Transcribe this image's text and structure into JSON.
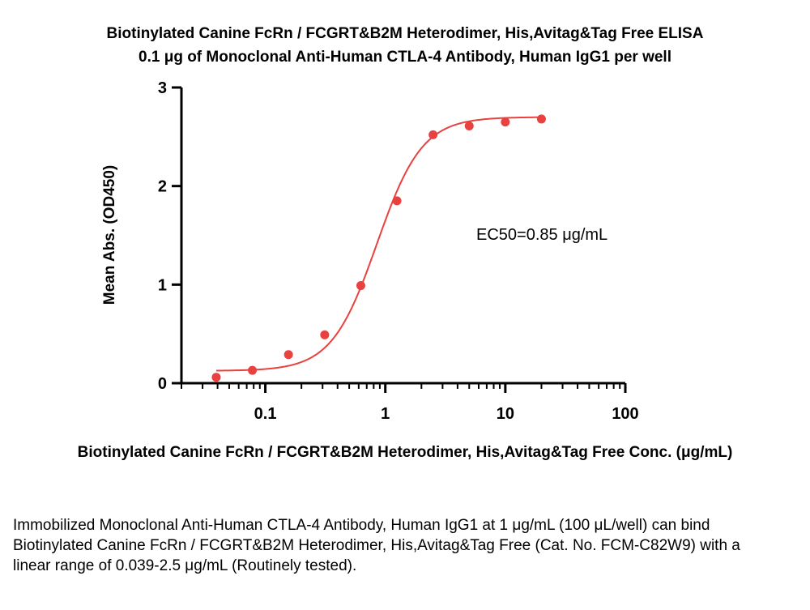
{
  "title": "Biotinylated Canine FcRn / FCGRT&B2M Heterodimer, His,Avitag&Tag Free ELISA",
  "subtitle": "0.1 μg of Monoclonal Anti-Human CTLA-4 Antibody, Human IgG1 per well",
  "caption": "Immobilized Monoclonal Anti-Human CTLA-4 Antibody, Human IgG1 at 1 μg/mL (100 μL/well) can bind Biotinylated Canine FcRn / FCGRT&B2M Heterodimer, His,Avitag&Tag Free (Cat. No. FCM-C82W9) with a linear range of 0.039-2.5 μg/mL (Routinely tested).",
  "colors": {
    "series": "#e8413f",
    "axis": "#000000"
  },
  "chart_data": {
    "type": "scatter",
    "title": "Biotinylated Canine FcRn / FCGRT&B2M Heterodimer, His,Avitag&Tag Free ELISA",
    "subtitle": "0.1 μg of Monoclonal Anti-Human CTLA-4 Antibody, Human IgG1 per well",
    "xlabel": "Biotinylated Canine FcRn / FCGRT&B2M Heterodimer, His,Avitag&Tag Free Conc. (μg/mL)",
    "ylabel": "Mean Abs. (OD450)",
    "xscale": "log",
    "xlim": [
      0.02,
      100
    ],
    "ylim": [
      0,
      3
    ],
    "xticks": [
      0.1,
      1,
      10,
      100
    ],
    "xtick_labels": [
      "0.1",
      "1",
      "10",
      "100"
    ],
    "yticks": [
      0,
      1,
      2,
      3
    ],
    "ytick_labels": [
      "0",
      "1",
      "2",
      "3"
    ],
    "grid": false,
    "series": [
      {
        "x": [
          0.039,
          0.078,
          0.156,
          0.3125,
          0.625,
          1.25,
          2.5,
          5,
          10,
          20
        ],
        "y": [
          0.06,
          0.13,
          0.29,
          0.49,
          0.99,
          1.85,
          2.52,
          2.61,
          2.65,
          2.68
        ],
        "fit": "4PL",
        "fit_params": {
          "bottom": 0.125,
          "top": 2.7,
          "ec50": 0.85,
          "hill": 2.3
        }
      }
    ],
    "annotations": [
      "EC50=0.85 μg/mL"
    ]
  }
}
